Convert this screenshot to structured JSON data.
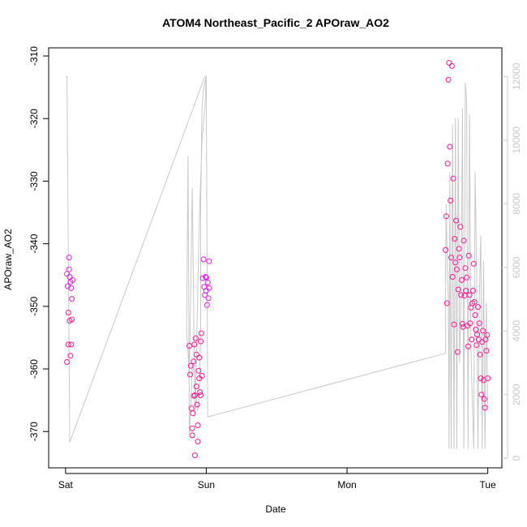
{
  "chart_data": {
    "type": "scatter",
    "title": "ATOM4 Northeast_Pacific_2 APOraw_AO2",
    "xlabel": "Date",
    "ylabel": "APOraw_AO2",
    "x_ticks": [
      "Sat",
      "Sun",
      "Mon",
      "Tue"
    ],
    "x_tick_days": [
      0,
      1,
      2,
      3
    ],
    "xlim_days": [
      -0.12,
      3.1
    ],
    "ylim": [
      -375.8,
      -308.7
    ],
    "y_ticks": [
      -310,
      -320,
      -330,
      -340,
      -350,
      -360,
      -370
    ],
    "y_ticks_right": [
      0,
      2000,
      4000,
      6000,
      8000,
      10000,
      12000
    ],
    "ylim_right": [
      -300,
      12900
    ],
    "grid": false,
    "colors": {
      "points": "#ff1493",
      "points_alt": "#e61ee6",
      "secondary_line": "#c8c8c8",
      "axis": "#000000",
      "right_axis": "#c8c8c8"
    },
    "series": [
      {
        "kind": "points",
        "x_days": [
          0.01,
          0.01,
          0.015,
          0.02,
          0.02,
          0.025,
          0.025,
          0.03,
          0.03,
          0.035,
          0.035,
          0.04,
          0.04,
          0.045,
          0.045,
          0.05,
          0.88,
          0.885,
          0.89,
          0.895,
          0.9,
          0.9,
          0.905,
          0.91,
          0.91,
          0.915,
          0.92,
          0.92,
          0.925,
          0.93,
          0.93,
          0.935,
          0.94,
          0.94,
          0.945,
          0.95,
          0.95,
          0.955,
          0.96,
          0.96,
          0.965,
          0.97,
          0.975,
          0.98,
          0.985,
          0.99,
          0.995,
          1.0,
          1.0,
          1.005,
          1.01,
          1.015,
          1.02,
          1.02,
          2.7,
          2.705,
          2.71,
          2.715,
          2.72,
          2.725,
          2.73,
          2.735,
          2.74,
          2.745,
          2.75,
          2.755,
          2.76,
          2.765,
          2.77,
          2.775,
          2.78,
          2.785,
          2.79,
          2.795,
          2.8,
          2.805,
          2.81,
          2.815,
          2.82,
          2.825,
          2.83,
          2.835,
          2.84,
          2.845,
          2.85,
          2.855,
          2.86,
          2.865,
          2.87,
          2.875,
          2.88,
          2.885,
          2.89,
          2.895,
          2.9,
          2.905,
          2.91,
          2.915,
          2.92,
          2.925,
          2.93,
          2.935,
          2.94,
          2.945,
          2.95,
          2.955,
          2.96,
          2.965,
          2.97,
          2.975,
          2.98,
          2.985,
          2.99,
          2.995,
          3.0
        ],
        "y": [
          -344.8,
          -358.9,
          -346.8,
          -351,
          -356.1,
          -342.2,
          -344.1,
          -352.3,
          -345.3,
          -357.9,
          -346.1,
          -347.1,
          -356.1,
          -348.8,
          -352.1,
          -345.8,
          -356.3,
          -360.9,
          -359.5,
          -366.3,
          -369.5,
          -370.6,
          -367.1,
          -364.3,
          -358.8,
          -356.1,
          -373.8,
          -364.2,
          -355.1,
          -357.7,
          -362.8,
          -365.7,
          -369,
          -371.6,
          -360.3,
          -361.5,
          -358.2,
          -363.7,
          -364.2,
          -355.6,
          -354.3,
          -361.1,
          -345.5,
          -342.5,
          -346.9,
          -348.2,
          -345.3,
          -347.5,
          -345.4,
          -349.8,
          -346.2,
          -348.7,
          -342.8,
          -347.1,
          -341,
          -335.6,
          -349.5,
          -327.2,
          -313.8,
          -311.1,
          -324.5,
          -333.1,
          -342.2,
          -311.6,
          -345.3,
          -329.6,
          -352.9,
          -339.2,
          -343,
          -336.3,
          -344.1,
          -357.3,
          -347.3,
          -340.8,
          -342.2,
          -337.3,
          -348.2,
          -345.8,
          -352.8,
          -353.3,
          -339.5,
          -348.3,
          -343.9,
          -347.5,
          -345.4,
          -353.1,
          -356.4,
          -341.9,
          -348.2,
          -352.7,
          -350.2,
          -355.3,
          -349.5,
          -347.5,
          -343.2,
          -349.3,
          -351.4,
          -353.7,
          -356.2,
          -354.5,
          -350.1,
          -355.3,
          -352.7,
          -357.7,
          -361.5,
          -364.1,
          -355.7,
          -353.9,
          -361.8,
          -364.8,
          -366.2,
          -355.3,
          -357.1,
          -354.6,
          -361.5
        ],
        "name": ""
      },
      {
        "kind": "line",
        "axis": "right",
        "x_days": [
          0,
          0.01,
          0.03,
          0.99,
          0.99,
          1.0,
          0.98,
          0.97,
          0.96,
          0.96,
          0.95,
          0.94,
          0.93,
          0.92,
          0.9,
          0.89,
          0.88,
          0.87,
          0.86,
          0.88,
          0.9,
          0.92,
          0.95,
          0.97,
          0.98,
          0.99,
          1.0,
          1.01,
          2.7,
          2.7,
          2.705,
          2.71,
          2.72,
          2.725,
          2.73,
          2.74,
          2.75,
          2.76,
          2.77,
          2.78,
          2.79,
          2.8,
          2.81,
          2.82,
          2.83,
          2.84,
          2.85,
          2.86,
          2.87,
          2.88,
          2.89,
          2.9,
          2.91,
          2.92,
          2.93,
          2.94,
          2.95,
          2.96,
          2.97,
          2.98,
          2.99,
          3.0
        ],
        "y": [
          12000,
          12000,
          500,
          12000,
          12000,
          12000,
          11600,
          11000,
          8000,
          4000,
          2000,
          1500,
          1800,
          2500,
          3000,
          1500,
          800,
          9500,
          4000,
          2600,
          8500,
          1300,
          7500,
          10000,
          10500,
          11000,
          12000,
          1300,
          3300,
          6000,
          8000,
          6500,
          5000,
          300,
          9000,
          300,
          10500,
          300,
          10700,
          300,
          10700,
          3000,
          5000,
          11000,
          300,
          11800,
          11200,
          300,
          10800,
          3500,
          1800,
          300,
          9000,
          6000,
          300,
          5000,
          7000,
          300,
          6200,
          300,
          4900,
          1600
        ],
        "name": ""
      }
    ]
  }
}
